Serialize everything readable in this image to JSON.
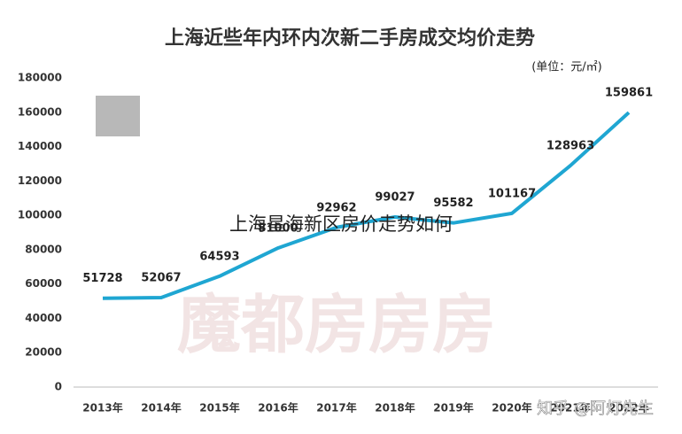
{
  "chart_data": {
    "type": "line",
    "title": "上海近些年内环内次新二手房成交均价走势",
    "subtitle": "(单位：元/㎡)",
    "categories": [
      "2013年",
      "2014年",
      "2015年",
      "2016年",
      "2017年",
      "2018年",
      "2019年",
      "2020年",
      "2021年",
      "2022年"
    ],
    "values": [
      51728,
      52067,
      64593,
      81000,
      92962,
      99027,
      95582,
      101167,
      128963,
      159861
    ],
    "color": "#1fa6d2",
    "ylim": [
      0,
      180000
    ],
    "yticks": [
      0,
      20000,
      40000,
      60000,
      80000,
      100000,
      120000,
      140000,
      160000,
      180000
    ],
    "grid": false,
    "annotations": [
      "上海星海新区房价走势如何",
      "魔都房房房",
      "知乎 @阿灯先生"
    ]
  }
}
